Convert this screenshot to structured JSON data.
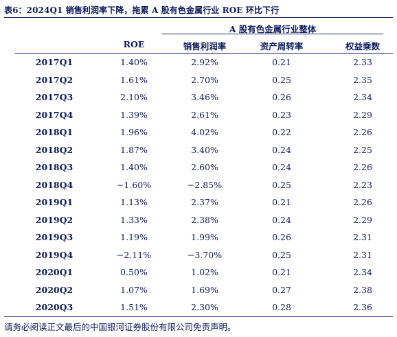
{
  "caption": "表6：2024Q1 销售利润率下降，拖累 A 股有色金属行业 ROE 环比下行",
  "group_header": "A 股有色金属行业整体",
  "columns": [
    "",
    "ROE",
    "销售利润率",
    "资产周转率",
    "权益乘数"
  ],
  "rows": [
    [
      "2017Q1",
      "1.40%",
      "2.92%",
      "0.21",
      "2.33"
    ],
    [
      "2017Q2",
      "1.61%",
      "2.70%",
      "0.25",
      "2.35"
    ],
    [
      "2017Q3",
      "2.10%",
      "3.46%",
      "0.26",
      "2.34"
    ],
    [
      "2017Q4",
      "1.39%",
      "2.61%",
      "0.23",
      "2.29"
    ],
    [
      "2018Q1",
      "1.96%",
      "4.02%",
      "0.22",
      "2.26"
    ],
    [
      "2018Q2",
      "1.87%",
      "3.40%",
      "0.24",
      "2.25"
    ],
    [
      "2018Q3",
      "1.40%",
      "2.60%",
      "0.24",
      "2.26"
    ],
    [
      "2018Q4",
      "−1.60%",
      "−2.85%",
      "0.25",
      "2.23"
    ],
    [
      "2019Q1",
      "1.13%",
      "2.37%",
      "0.21",
      "2.26"
    ],
    [
      "2019Q2",
      "1.33%",
      "2.38%",
      "0.24",
      "2.29"
    ],
    [
      "2019Q3",
      "1.19%",
      "1.99%",
      "0.26",
      "2.31"
    ],
    [
      "2019Q4",
      "−2.11%",
      "−3.70%",
      "0.25",
      "2.31"
    ],
    [
      "2020Q1",
      "0.50%",
      "1.02%",
      "0.21",
      "2.34"
    ],
    [
      "2020Q2",
      "1.07%",
      "1.69%",
      "0.27",
      "2.38"
    ],
    [
      "2020Q3",
      "1.51%",
      "2.30%",
      "0.28",
      "2.36"
    ]
  ],
  "footer": "请务必阅读正文最后的中国银河证券股份有限公司免责声明。"
}
